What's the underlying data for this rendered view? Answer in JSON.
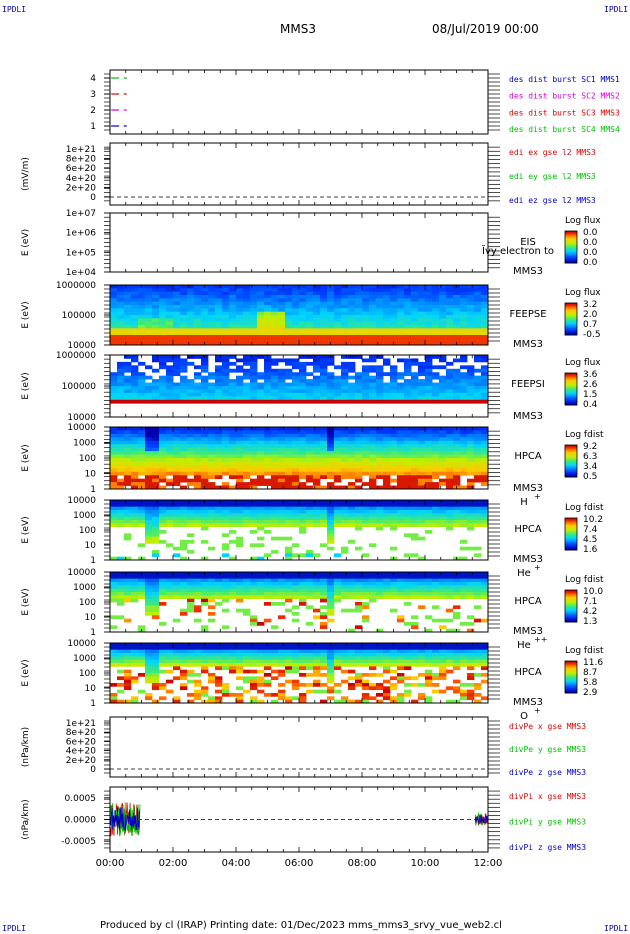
{
  "header": {
    "left_tag": "IPDLI",
    "right_tag": "IPDLI",
    "mission": "MMS3",
    "datetime": "08/Jul/2019 00:00"
  },
  "footer": {
    "text": "Produced by cl (IRAP)   Printing date: 01/Dec/2023   mms_mms3_srvy_vue_web2.cl",
    "left_tag": "IPDLI",
    "right_tag": "IPDLI"
  },
  "colors": {
    "red": "#e00000",
    "green": "#00c000",
    "magenta": "#d000d0",
    "blue": "#0000c0",
    "dash": "#000000"
  },
  "chart_data": {
    "type": "multi-panel stack",
    "x": {
      "ticks": [
        "00:00",
        "02:00",
        "04:00",
        "06:00",
        "08:00",
        "10:00",
        "12:00"
      ],
      "range_hours": [
        0,
        12
      ]
    },
    "panels": [
      {
        "id": "burst",
        "type": "scatter",
        "ylabel": "",
        "yticks": [
          "4",
          "3",
          "2",
          "1"
        ],
        "legend": [
          {
            "text": "des dist burst SC1 MMS1",
            "color": "#0000c0"
          },
          {
            "text": "des dist burst SC2 MMS2",
            "color": "#d000d0"
          },
          {
            "text": "des dist burst SC3 MMS3",
            "color": "#e00000"
          },
          {
            "text": "des dist burst SC4 MMS4",
            "color": "#00c000"
          }
        ],
        "series": [
          {
            "level": 4,
            "x": [
              0.1,
              0.5
            ],
            "color": "#00c000"
          },
          {
            "level": 3,
            "x": [
              0.1,
              0.5
            ],
            "color": "#e00000"
          },
          {
            "level": 2,
            "x": [
              0.1,
              0.5
            ],
            "color": "#d000d0"
          },
          {
            "level": 1,
            "x": [
              0.1,
              0.5
            ],
            "color": "#0000c0"
          }
        ]
      },
      {
        "id": "edi",
        "type": "line",
        "ylabel": "(mV/m)",
        "yticks": [
          "1e+21",
          "8e+20",
          "6e+20",
          "4e+20",
          "2e+20",
          "0"
        ],
        "legend": [
          {
            "text": "edi ex gse l2 MMS3",
            "color": "#e00000"
          },
          {
            "text": "edi ey gse l2 MMS3",
            "color": "#00c000"
          },
          {
            "text": "edi ez gse l2 MMS3",
            "color": "#0000c0"
          }
        ]
      },
      {
        "id": "eis",
        "type": "heatmap",
        "ylabel": "E (eV)",
        "yticks": [
          "1e+07",
          "1e+06",
          "1e+05",
          "1e+04"
        ],
        "labels": [
          "EIS",
          "MMS3"
        ],
        "overlay": "Ĭvy electron to",
        "cbar_title": "Log flux",
        "cbar_ticks": [
          "0.0",
          "0.0",
          "0.0",
          "0.0"
        ],
        "fill": "none"
      },
      {
        "id": "feepse",
        "type": "heatmap",
        "ylabel": "E (eV)",
        "yticks": [
          "1000000",
          "100000",
          "10000"
        ],
        "labels": [
          "FEEPSE",
          "MMS3"
        ],
        "cbar_title": "Log flux",
        "cbar_ticks": [
          "3.2",
          "2.0",
          "0.7",
          "-0.5"
        ],
        "fill": "feepse"
      },
      {
        "id": "feepsi",
        "type": "heatmap",
        "ylabel": "E (eV)",
        "yticks": [
          "1000000",
          "100000",
          "10000"
        ],
        "labels": [
          "FEEPSI",
          "MMS3"
        ],
        "cbar_title": "Log flux",
        "cbar_ticks": [
          "3.6",
          "2.6",
          "1.5",
          "0.4"
        ],
        "fill": "feepsi"
      },
      {
        "id": "hpca_h",
        "type": "heatmap",
        "ylabel": "E (eV)",
        "yticks": [
          "10000",
          "1000",
          "100",
          "10",
          "1"
        ],
        "labels": [
          "HPCA",
          "MMS3",
          "H",
          "+"
        ],
        "cbar_title": "Log fdist",
        "cbar_ticks": [
          "9.2",
          "6.3",
          "3.4",
          "0.5"
        ],
        "fill": "hplus"
      },
      {
        "id": "hpca_he",
        "type": "heatmap",
        "ylabel": "E (eV)",
        "yticks": [
          "10000",
          "1000",
          "100",
          "10",
          "1"
        ],
        "labels": [
          "HPCA",
          "MMS3",
          "He",
          "+"
        ],
        "cbar_title": "Log fdist",
        "cbar_ticks": [
          "10.2",
          "7.4",
          "4.5",
          "1.6"
        ],
        "fill": "heplus"
      },
      {
        "id": "hpca_hepp",
        "type": "heatmap",
        "ylabel": "E (eV)",
        "yticks": [
          "10000",
          "1000",
          "100",
          "10",
          "1"
        ],
        "labels": [
          "HPCA",
          "MMS3",
          "He",
          "++"
        ],
        "cbar_title": "Log fdist",
        "cbar_ticks": [
          "10.0",
          "7.1",
          "4.2",
          "1.3"
        ],
        "fill": "heplusplus"
      },
      {
        "id": "hpca_o",
        "type": "heatmap",
        "ylabel": "E (eV)",
        "yticks": [
          "10000",
          "1000",
          "100",
          "10",
          "1"
        ],
        "labels": [
          "HPCA",
          "MMS3",
          "O",
          "+"
        ],
        "cbar_title": "Log fdist",
        "cbar_ticks": [
          "11.6",
          "8.7",
          "5.8",
          "2.9"
        ],
        "fill": "oplus"
      },
      {
        "id": "divpe",
        "type": "line",
        "ylabel": "(nPa/km)",
        "yticks": [
          "1e+21",
          "8e+20",
          "6e+20",
          "4e+20",
          "2e+20",
          "0"
        ],
        "legend": [
          {
            "text": "divPe x gse MMS3",
            "color": "#e00000"
          },
          {
            "text": "divPe y gse MMS3",
            "color": "#00c000"
          },
          {
            "text": "divPe z gse MMS3",
            "color": "#0000c0"
          }
        ]
      },
      {
        "id": "divpi",
        "type": "line",
        "ylabel": "(nPa/km)",
        "yticks": [
          "0.0005",
          "0.0000",
          "-0.0005"
        ],
        "ylim": [
          -0.00075,
          0.00075
        ],
        "legend": [
          {
            "text": "divPi x gse MMS3",
            "color": "#e00000"
          },
          {
            "text": "divPi y gse MMS3",
            "color": "#00c000"
          },
          {
            "text": "divPi z gse MMS3",
            "color": "#0000c0"
          }
        ],
        "data_windows_hours": [
          [
            0.0,
            0.95
          ],
          [
            11.6,
            12.0
          ]
        ],
        "amplitude": 0.0004
      }
    ]
  }
}
